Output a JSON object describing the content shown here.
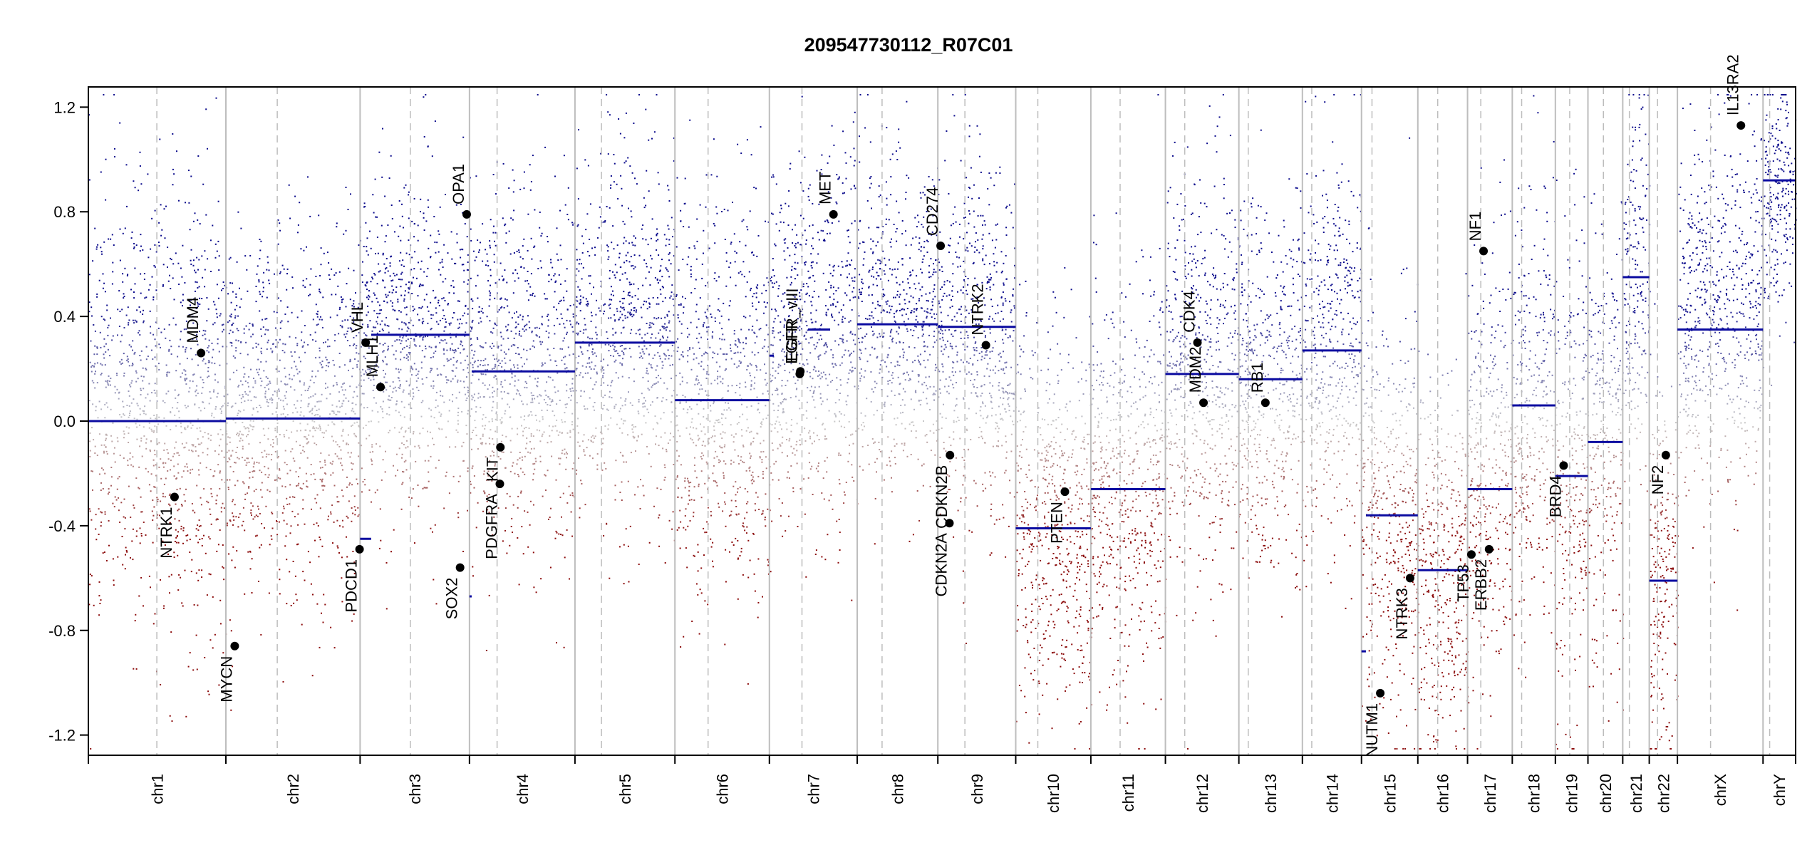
{
  "chart_data": {
    "type": "scatter",
    "title": "209547730112_R07C01",
    "xlabel": "",
    "ylabel": "",
    "ylim": [
      -1.25,
      1.25
    ],
    "yticks": [
      -1.2,
      -0.8,
      -0.4,
      0.0,
      0.4,
      0.8,
      1.2
    ],
    "ytick_labels": [
      "-1.2",
      "-0.8",
      "-0.4",
      "0.0",
      "0.4",
      "0.8",
      "1.2"
    ],
    "grid": false,
    "legend": "none",
    "colors": {
      "gain": "#0b0b8c",
      "loss": "#8b0a0a",
      "neutral": "#c8c8c8",
      "segment": "#0b0ba0",
      "chrom_boundary": "#bdbdbd",
      "centromere": "#bdbdbd",
      "gene_point": "#000000"
    },
    "chromosomes": [
      {
        "name": "chr1",
        "start_mb": 0,
        "len_mb": 249,
        "cen_mb": 124
      },
      {
        "name": "chr2",
        "start_mb": 249,
        "len_mb": 243,
        "cen_mb": 93
      },
      {
        "name": "chr3",
        "start_mb": 492,
        "len_mb": 198,
        "cen_mb": 91
      },
      {
        "name": "chr4",
        "start_mb": 690,
        "len_mb": 191,
        "cen_mb": 50
      },
      {
        "name": "chr5",
        "start_mb": 881,
        "len_mb": 181,
        "cen_mb": 48
      },
      {
        "name": "chr6",
        "start_mb": 1062,
        "len_mb": 171,
        "cen_mb": 60
      },
      {
        "name": "chr7",
        "start_mb": 1233,
        "len_mb": 159,
        "cen_mb": 59
      },
      {
        "name": "chr8",
        "start_mb": 1392,
        "len_mb": 146,
        "cen_mb": 45
      },
      {
        "name": "chr9",
        "start_mb": 1538,
        "len_mb": 141,
        "cen_mb": 49
      },
      {
        "name": "chr10",
        "start_mb": 1679,
        "len_mb": 136,
        "cen_mb": 40
      },
      {
        "name": "chr11",
        "start_mb": 1815,
        "len_mb": 135,
        "cen_mb": 53
      },
      {
        "name": "chr12",
        "start_mb": 1950,
        "len_mb": 133,
        "cen_mb": 35
      },
      {
        "name": "chr13",
        "start_mb": 2083,
        "len_mb": 115,
        "cen_mb": 17
      },
      {
        "name": "chr14",
        "start_mb": 2198,
        "len_mb": 107,
        "cen_mb": 17
      },
      {
        "name": "chr15",
        "start_mb": 2305,
        "len_mb": 102,
        "cen_mb": 19
      },
      {
        "name": "chr16",
        "start_mb": 2407,
        "len_mb": 90,
        "cen_mb": 36
      },
      {
        "name": "chr17",
        "start_mb": 2497,
        "len_mb": 81,
        "cen_mb": 24
      },
      {
        "name": "chr18",
        "start_mb": 2578,
        "len_mb": 78,
        "cen_mb": 17
      },
      {
        "name": "chr19",
        "start_mb": 2656,
        "len_mb": 59,
        "cen_mb": 26
      },
      {
        "name": "chr20",
        "start_mb": 2715,
        "len_mb": 63,
        "cen_mb": 28
      },
      {
        "name": "chr21",
        "start_mb": 2778,
        "len_mb": 48,
        "cen_mb": 12
      },
      {
        "name": "chr22",
        "start_mb": 2826,
        "len_mb": 51,
        "cen_mb": 15
      },
      {
        "name": "chrX",
        "start_mb": 2877,
        "len_mb": 155,
        "cen_mb": 60
      },
      {
        "name": "chrY",
        "start_mb": 3032,
        "len_mb": 59,
        "cen_mb": 12
      }
    ],
    "segments": [
      {
        "chrom": "chr1",
        "start_mb": 0,
        "end_mb": 249,
        "value": 0.0
      },
      {
        "chrom": "chr2",
        "start_mb": 0,
        "end_mb": 243,
        "value": 0.01
      },
      {
        "chrom": "chr3",
        "start_mb": 0,
        "end_mb": 20,
        "value": -0.45
      },
      {
        "chrom": "chr3",
        "start_mb": 20,
        "end_mb": 198,
        "value": 0.33
      },
      {
        "chrom": "chr4",
        "start_mb": 0,
        "end_mb": 4,
        "value": -0.67
      },
      {
        "chrom": "chr4",
        "start_mb": 4,
        "end_mb": 191,
        "value": 0.19
      },
      {
        "chrom": "chr5",
        "start_mb": 0,
        "end_mb": 181,
        "value": 0.3
      },
      {
        "chrom": "chr6",
        "start_mb": 0,
        "end_mb": 171,
        "value": 0.08
      },
      {
        "chrom": "chr7",
        "start_mb": 0,
        "end_mb": 8,
        "value": 0.25
      },
      {
        "chrom": "chr7",
        "start_mb": 70,
        "end_mb": 110,
        "value": 0.35
      },
      {
        "chrom": "chr8",
        "start_mb": 0,
        "end_mb": 146,
        "value": 0.37
      },
      {
        "chrom": "chr9",
        "start_mb": 0,
        "end_mb": 141,
        "value": 0.36
      },
      {
        "chrom": "chr10",
        "start_mb": 0,
        "end_mb": 136,
        "value": -0.41
      },
      {
        "chrom": "chr11",
        "start_mb": 0,
        "end_mb": 135,
        "value": -0.26
      },
      {
        "chrom": "chr12",
        "start_mb": 0,
        "end_mb": 133,
        "value": 0.18
      },
      {
        "chrom": "chr13",
        "start_mb": 0,
        "end_mb": 115,
        "value": 0.16
      },
      {
        "chrom": "chr14",
        "start_mb": 0,
        "end_mb": 107,
        "value": 0.27
      },
      {
        "chrom": "chr15",
        "start_mb": 0,
        "end_mb": 8,
        "value": -0.88
      },
      {
        "chrom": "chr15",
        "start_mb": 8,
        "end_mb": 102,
        "value": -0.36
      },
      {
        "chrom": "chr16",
        "start_mb": 0,
        "end_mb": 90,
        "value": -0.57
      },
      {
        "chrom": "chr17",
        "start_mb": 0,
        "end_mb": 81,
        "value": -0.26
      },
      {
        "chrom": "chr18",
        "start_mb": 0,
        "end_mb": 78,
        "value": 0.06
      },
      {
        "chrom": "chr19",
        "start_mb": 0,
        "end_mb": 59,
        "value": -0.21
      },
      {
        "chrom": "chr20",
        "start_mb": 0,
        "end_mb": 63,
        "value": -0.08
      },
      {
        "chrom": "chr21",
        "start_mb": 0,
        "end_mb": 48,
        "value": 0.55
      },
      {
        "chrom": "chr22",
        "start_mb": 0,
        "end_mb": 51,
        "value": -0.61
      },
      {
        "chrom": "chrX",
        "start_mb": 0,
        "end_mb": 155,
        "value": 0.35
      },
      {
        "chrom": "chrY",
        "start_mb": 0,
        "end_mb": 59,
        "value": 0.92
      }
    ],
    "genes": [
      {
        "name": "NTRK1",
        "chrom": "chr1",
        "pos_mb": 156,
        "value": -0.29
      },
      {
        "name": "MDM4",
        "chrom": "chr1",
        "pos_mb": 204,
        "value": 0.26
      },
      {
        "name": "MYCN",
        "chrom": "chr2",
        "pos_mb": 16,
        "value": -0.86
      },
      {
        "name": "VHL",
        "chrom": "chr3",
        "pos_mb": 10,
        "value": 0.3
      },
      {
        "name": "PDCD1",
        "chrom": "chr2",
        "pos_mb": 242,
        "value": -0.49
      },
      {
        "name": "MLH1",
        "chrom": "chr3",
        "pos_mb": 37,
        "value": 0.13
      },
      {
        "name": "SOX2",
        "chrom": "chr3",
        "pos_mb": 181,
        "value": -0.56
      },
      {
        "name": "OPA1",
        "chrom": "chr3",
        "pos_mb": 193,
        "value": 0.79
      },
      {
        "name": "PDGFRA",
        "chrom": "chr4",
        "pos_mb": 55,
        "value": -0.24
      },
      {
        "name": "KIT",
        "chrom": "chr4",
        "pos_mb": 56,
        "value": -0.1
      },
      {
        "name": "EGFR",
        "chrom": "chr7",
        "pos_mb": 55,
        "value": 0.18
      },
      {
        "name": "EGFR_vIII",
        "chrom": "chr7",
        "pos_mb": 56,
        "value": 0.19
      },
      {
        "name": "MET",
        "chrom": "chr7",
        "pos_mb": 116,
        "value": 0.79
      },
      {
        "name": "CD274",
        "chrom": "chr9",
        "pos_mb": 5,
        "value": 0.67
      },
      {
        "name": "CDKN2A",
        "chrom": "chr9",
        "pos_mb": 21,
        "value": -0.39
      },
      {
        "name": "CDKN2B",
        "chrom": "chr9",
        "pos_mb": 22,
        "value": -0.13
      },
      {
        "name": "NTRK2",
        "chrom": "chr9",
        "pos_mb": 87,
        "value": 0.29
      },
      {
        "name": "PTEN",
        "chrom": "chr10",
        "pos_mb": 89,
        "value": -0.27
      },
      {
        "name": "MDM2",
        "chrom": "chr12",
        "pos_mb": 69,
        "value": 0.07
      },
      {
        "name": "CDK4",
        "chrom": "chr12",
        "pos_mb": 58,
        "value": 0.3
      },
      {
        "name": "RB1",
        "chrom": "chr13",
        "pos_mb": 48,
        "value": 0.07
      },
      {
        "name": "NUTM1",
        "chrom": "chr15",
        "pos_mb": 34,
        "value": -1.04
      },
      {
        "name": "NTRK3",
        "chrom": "chr15",
        "pos_mb": 88,
        "value": -0.6
      },
      {
        "name": "TP53",
        "chrom": "chr17",
        "pos_mb": 7,
        "value": -0.51
      },
      {
        "name": "NF1",
        "chrom": "chr17",
        "pos_mb": 29,
        "value": 0.65
      },
      {
        "name": "ERBB2",
        "chrom": "chr17",
        "pos_mb": 39,
        "value": -0.49
      },
      {
        "name": "BRD4",
        "chrom": "chr19",
        "pos_mb": 15,
        "value": -0.17
      },
      {
        "name": "NF2",
        "chrom": "chr22",
        "pos_mb": 30,
        "value": -0.13
      },
      {
        "name": "IL13RA2",
        "chrom": "chrX",
        "pos_mb": 115,
        "value": 1.13
      }
    ],
    "probe_profile": [
      {
        "chrom": "chr1",
        "bias": 0.05,
        "spread": 0.55
      },
      {
        "chrom": "chr2",
        "bias": 0.02,
        "spread": 0.45
      },
      {
        "chrom": "chr3",
        "bias": 0.3,
        "spread": 0.4
      },
      {
        "chrom": "chr4",
        "bias": 0.18,
        "spread": 0.45
      },
      {
        "chrom": "chr5",
        "bias": 0.32,
        "spread": 0.45
      },
      {
        "chrom": "chr6",
        "bias": 0.1,
        "spread": 0.5
      },
      {
        "chrom": "chr7",
        "bias": 0.3,
        "spread": 0.45
      },
      {
        "chrom": "chr8",
        "bias": 0.38,
        "spread": 0.4
      },
      {
        "chrom": "chr9",
        "bias": 0.3,
        "spread": 0.45
      },
      {
        "chrom": "chr10",
        "bias": -0.38,
        "spread": 0.45
      },
      {
        "chrom": "chr11",
        "bias": -0.25,
        "spread": 0.5
      },
      {
        "chrom": "chr12",
        "bias": 0.2,
        "spread": 0.5
      },
      {
        "chrom": "chr13",
        "bias": 0.15,
        "spread": 0.45
      },
      {
        "chrom": "chr14",
        "bias": 0.28,
        "spread": 0.5
      },
      {
        "chrom": "chr15",
        "bias": -0.35,
        "spread": 0.5
      },
      {
        "chrom": "chr16",
        "bias": -0.55,
        "spread": 0.45
      },
      {
        "chrom": "chr17",
        "bias": -0.15,
        "spread": 0.55
      },
      {
        "chrom": "chr18",
        "bias": 0.05,
        "spread": 0.5
      },
      {
        "chrom": "chr19",
        "bias": -0.2,
        "spread": 0.55
      },
      {
        "chrom": "chr20",
        "bias": -0.08,
        "spread": 0.55
      },
      {
        "chrom": "chr21",
        "bias": 0.55,
        "spread": 0.45
      },
      {
        "chrom": "chr22",
        "bias": -0.55,
        "spread": 0.5
      },
      {
        "chrom": "chrX",
        "bias": 0.4,
        "spread": 0.45
      },
      {
        "chrom": "chrY",
        "bias": 0.9,
        "spread": 0.3
      }
    ]
  }
}
